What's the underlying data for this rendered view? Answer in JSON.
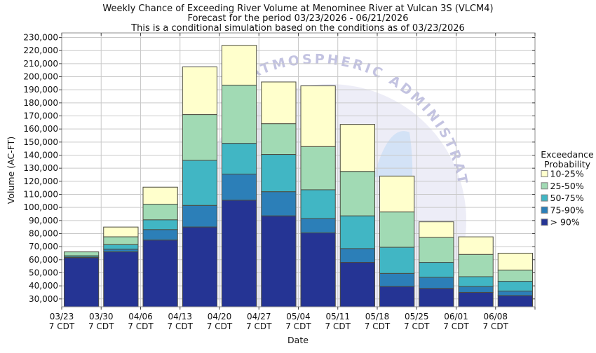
{
  "chart_data": {
    "type": "bar",
    "stacked": true,
    "title_lines": [
      "Weekly Chance of Exceeding River Volume at Menominee River at Vulcan 3S (VLCM4)",
      "Forecast for the period 03/23/2026 - 06/21/2026",
      "This is a conditional simulation based on the conditions as of 03/23/2026"
    ],
    "xlabel": "Date",
    "ylabel": "Volume (AC-FT)",
    "ylim": [
      24000,
      233500
    ],
    "yticks": {
      "min": 30000,
      "max": 230000,
      "step": 10000
    },
    "grid": true,
    "legend": {
      "position": "right",
      "title_line1": "Exceedance",
      "title_line2": "Probability",
      "entries": [
        "10-25%",
        "25-50%",
        "50-75%",
        "75-90%",
        "> 90%"
      ]
    },
    "colors": [
      "#FFFFCC",
      "#A1DAB4",
      "#41B6C4",
      "#2C7FB8",
      "#253494"
    ],
    "weeks": [
      {
        "date": "03/23",
        "time": "7 CDT",
        "v10": 66000,
        "v25": 66000,
        "v50": 63000,
        "v75": 62000,
        "v90": 61500
      },
      {
        "date": "03/30",
        "time": "7 CDT",
        "v10": 85000,
        "v25": 77500,
        "v50": 71500,
        "v75": 68000,
        "v90": 66000
      },
      {
        "date": "04/06",
        "time": "7 CDT",
        "v10": 115500,
        "v25": 102500,
        "v50": 90500,
        "v75": 83000,
        "v90": 75000
      },
      {
        "date": "04/13",
        "time": "7 CDT",
        "v10": 207500,
        "v25": 171000,
        "v50": 136000,
        "v75": 101500,
        "v90": 85000
      },
      {
        "date": "04/20",
        "time": "7 CDT",
        "v10": 224000,
        "v25": 193500,
        "v50": 149000,
        "v75": 125500,
        "v90": 105500
      },
      {
        "date": "04/27",
        "time": "7 CDT",
        "v10": 196000,
        "v25": 164000,
        "v50": 140500,
        "v75": 112000,
        "v90": 93500
      },
      {
        "date": "05/04",
        "time": "7 CDT",
        "v10": 193000,
        "v25": 146500,
        "v50": 113500,
        "v75": 91500,
        "v90": 80500
      },
      {
        "date": "05/11",
        "time": "7 CDT",
        "v10": 163500,
        "v25": 127500,
        "v50": 93500,
        "v75": 68500,
        "v90": 58000
      },
      {
        "date": "05/18",
        "time": "7 CDT",
        "v10": 124000,
        "v25": 96500,
        "v50": 69500,
        "v75": 49500,
        "v90": 39500
      },
      {
        "date": "05/25",
        "time": "7 CDT",
        "v10": 89000,
        "v25": 77000,
        "v50": 58000,
        "v75": 46500,
        "v90": 38000
      },
      {
        "date": "06/01",
        "time": "7 CDT",
        "v10": 77500,
        "v25": 64000,
        "v50": 47000,
        "v75": 39500,
        "v90": 35000
      },
      {
        "date": "06/08",
        "time": "7 CDT",
        "v10": 65000,
        "v25": 52000,
        "v50": 43500,
        "v75": 36000,
        "v90": 32500
      }
    ]
  },
  "watermark": {
    "text": "D ATMOSPHERIC ADMINISTRAT"
  },
  "style": {
    "grid_color": "#c9c9c9",
    "frame_color": "#8c8c8c",
    "tick_color": "#444444",
    "bar_edge_color": "#4d4d40",
    "watermark_dome_color": "#dcdcf0",
    "watermark_sail_color": "#cfe0f5"
  }
}
